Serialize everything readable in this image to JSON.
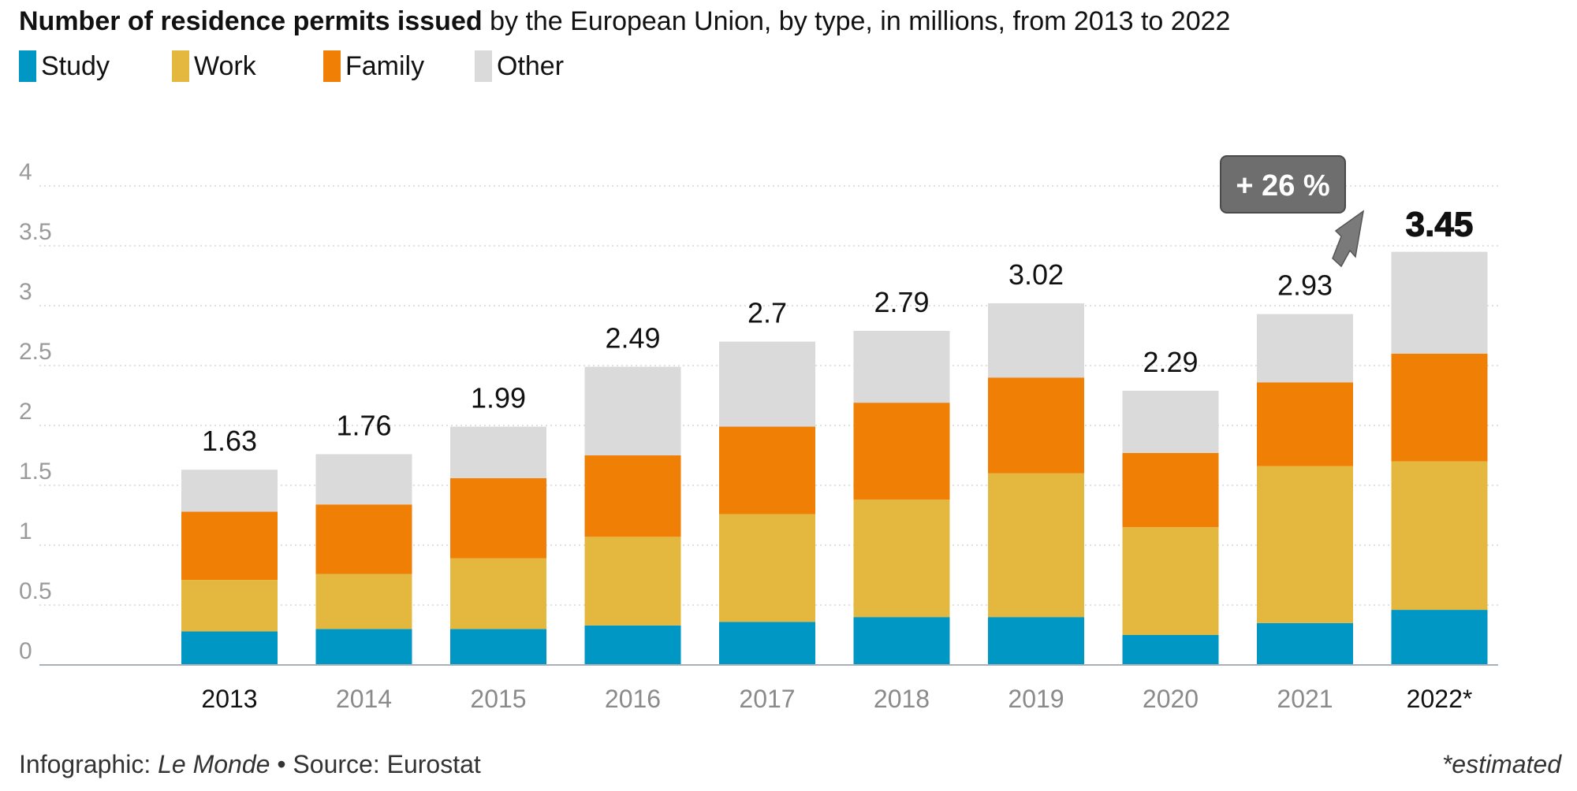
{
  "header": {
    "title_bold": "Number of residence permits issued",
    "title_rest": " by the European Union, by type, in millions, from 2013 to 2022"
  },
  "footer": {
    "credit_prefix": "Infographic: ",
    "credit_outlet": "Le Monde",
    "separator": " • ",
    "source": "Source: Eurostat",
    "note": "*estimated"
  },
  "chart_data": {
    "type": "bar",
    "stacked": true,
    "title": "Number of residence permits issued by the European Union, by type, in millions, from 2013 to 2022",
    "categories": [
      "2013",
      "2014",
      "2015",
      "2016",
      "2017",
      "2018",
      "2019",
      "2020",
      "2021",
      "2022*"
    ],
    "series": [
      {
        "name": "Study",
        "color": "#0097c4",
        "values": [
          0.28,
          0.3,
          0.3,
          0.33,
          0.36,
          0.4,
          0.4,
          0.25,
          0.35,
          0.46
        ]
      },
      {
        "name": "Work",
        "color": "#e4b83f",
        "values": [
          0.43,
          0.46,
          0.59,
          0.74,
          0.9,
          0.98,
          1.2,
          0.9,
          1.31,
          1.24
        ]
      },
      {
        "name": "Family",
        "color": "#f07f06",
        "values": [
          0.57,
          0.58,
          0.67,
          0.68,
          0.73,
          0.81,
          0.8,
          0.62,
          0.7,
          0.9
        ]
      },
      {
        "name": "Other",
        "color": "#dadada",
        "values": [
          0.35,
          0.42,
          0.43,
          0.74,
          0.71,
          0.6,
          0.62,
          0.52,
          0.57,
          0.85
        ]
      }
    ],
    "totals": [
      1.63,
      1.76,
      1.99,
      2.49,
      2.7,
      2.79,
      3.02,
      2.29,
      2.93,
      3.45
    ],
    "total_labels": [
      "1.63",
      "1.76",
      "1.99",
      "2.49",
      "2.7",
      "2.79",
      "3.02",
      "2.29",
      "2.93",
      "3.45"
    ],
    "highlight_index": 9,
    "bold_tick_indices": [
      0,
      9
    ],
    "ylim": [
      0,
      4
    ],
    "yticks": [
      0,
      0.5,
      1,
      1.5,
      2,
      2.5,
      3,
      3.5,
      4
    ],
    "ytick_labels": [
      "0",
      "0.5",
      "1",
      "1.5",
      "2",
      "2.5",
      "3",
      "3.5",
      "4"
    ],
    "grid": true,
    "xlabel": "",
    "ylabel": "",
    "annotation": {
      "text": "+ 26 %"
    }
  }
}
